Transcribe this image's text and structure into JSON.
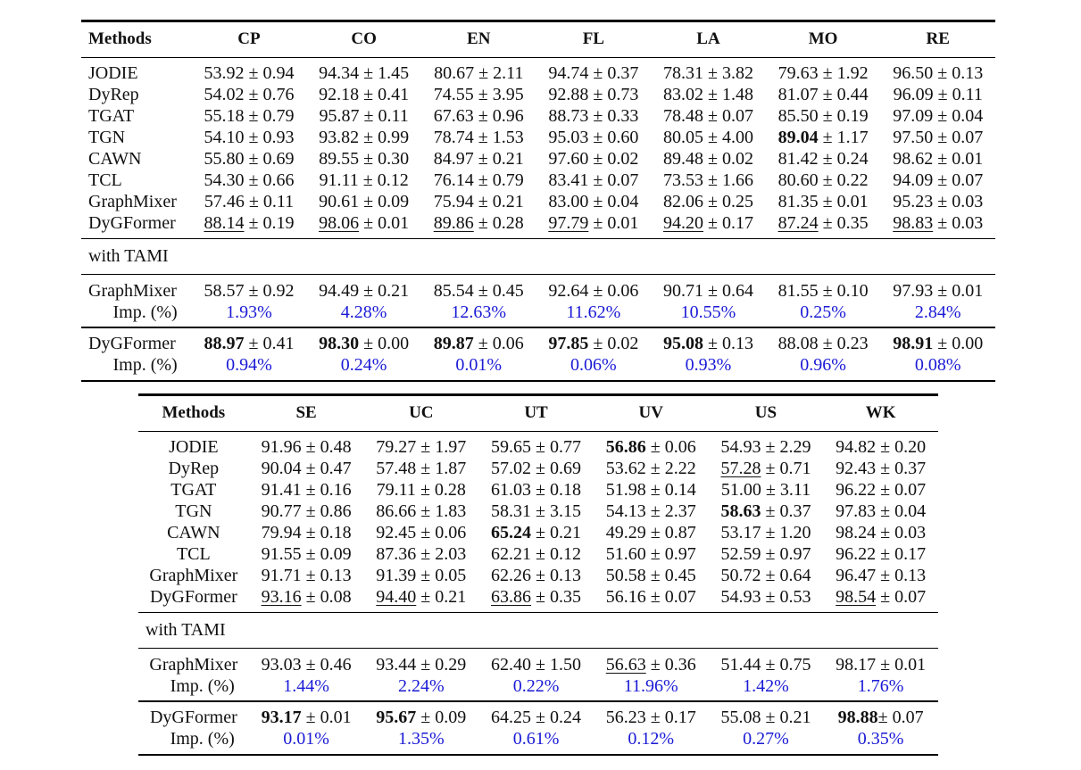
{
  "table1": {
    "header": [
      "Methods",
      "CP",
      "CO",
      "EN",
      "FL",
      "LA",
      "MO",
      "RE"
    ],
    "rows": [
      {
        "method": "JODIE",
        "cells": [
          {
            "v": "53.92",
            "s": "0.94"
          },
          {
            "v": "94.34",
            "s": "1.45"
          },
          {
            "v": "80.67",
            "s": "2.11"
          },
          {
            "v": "94.74",
            "s": "0.37"
          },
          {
            "v": "78.31",
            "s": "3.82"
          },
          {
            "v": "79.63",
            "s": "1.92"
          },
          {
            "v": "96.50",
            "s": "0.13"
          }
        ]
      },
      {
        "method": "DyRep",
        "cells": [
          {
            "v": "54.02",
            "s": "0.76"
          },
          {
            "v": "92.18",
            "s": "0.41"
          },
          {
            "v": "74.55",
            "s": "3.95"
          },
          {
            "v": "92.88",
            "s": "0.73"
          },
          {
            "v": "83.02",
            "s": "1.48"
          },
          {
            "v": "81.07",
            "s": "0.44"
          },
          {
            "v": "96.09",
            "s": "0.11"
          }
        ]
      },
      {
        "method": "TGAT",
        "cells": [
          {
            "v": "55.18",
            "s": "0.79"
          },
          {
            "v": "95.87",
            "s": "0.11"
          },
          {
            "v": "67.63",
            "s": "0.96"
          },
          {
            "v": "88.73",
            "s": "0.33"
          },
          {
            "v": "78.48",
            "s": "0.07"
          },
          {
            "v": "85.50",
            "s": "0.19"
          },
          {
            "v": "97.09",
            "s": "0.04"
          }
        ]
      },
      {
        "method": "TGN",
        "cells": [
          {
            "v": "54.10",
            "s": "0.93"
          },
          {
            "v": "93.82",
            "s": "0.99"
          },
          {
            "v": "78.74",
            "s": "1.53"
          },
          {
            "v": "95.03",
            "s": "0.60"
          },
          {
            "v": "80.05",
            "s": "4.00"
          },
          {
            "v": "89.04",
            "s": "1.17",
            "b": true
          },
          {
            "v": "97.50",
            "s": "0.07"
          }
        ]
      },
      {
        "method": "CAWN",
        "cells": [
          {
            "v": "55.80",
            "s": "0.69"
          },
          {
            "v": "89.55",
            "s": "0.30"
          },
          {
            "v": "84.97",
            "s": "0.21"
          },
          {
            "v": "97.60",
            "s": "0.02"
          },
          {
            "v": "89.48",
            "s": "0.02"
          },
          {
            "v": "81.42",
            "s": "0.24"
          },
          {
            "v": "98.62",
            "s": "0.01"
          }
        ]
      },
      {
        "method": "TCL",
        "cells": [
          {
            "v": "54.30",
            "s": "0.66"
          },
          {
            "v": "91.11",
            "s": "0.12"
          },
          {
            "v": "76.14",
            "s": "0.79"
          },
          {
            "v": "83.41",
            "s": "0.07"
          },
          {
            "v": "73.53",
            "s": "1.66"
          },
          {
            "v": "80.60",
            "s": "0.22"
          },
          {
            "v": "94.09",
            "s": "0.07"
          }
        ]
      },
      {
        "method": "GraphMixer",
        "cells": [
          {
            "v": "57.46",
            "s": "0.11"
          },
          {
            "v": "90.61",
            "s": "0.09"
          },
          {
            "v": "75.94",
            "s": "0.21"
          },
          {
            "v": "83.00",
            "s": "0.04"
          },
          {
            "v": "82.06",
            "s": "0.25"
          },
          {
            "v": "81.35",
            "s": "0.01"
          },
          {
            "v": "95.23",
            "s": "0.03"
          }
        ]
      },
      {
        "method": "DyGFormer",
        "cells": [
          {
            "v": "88.14",
            "s": "0.19",
            "u": true
          },
          {
            "v": "98.06",
            "s": "0.01",
            "u": true
          },
          {
            "v": "89.86",
            "s": "0.28",
            "u": true
          },
          {
            "v": "97.79",
            "s": "0.01",
            "u": true
          },
          {
            "v": "94.20",
            "s": "0.17",
            "u": true
          },
          {
            "v": "87.24",
            "s": "0.35",
            "u": true
          },
          {
            "v": "98.83",
            "s": "0.03",
            "u": true
          }
        ]
      }
    ],
    "section_label": "with TAMI",
    "tami": [
      {
        "method": "GraphMixer",
        "cells": [
          {
            "v": "58.57",
            "s": "0.92"
          },
          {
            "v": "94.49",
            "s": "0.21"
          },
          {
            "v": "85.54",
            "s": "0.45"
          },
          {
            "v": "92.64",
            "s": "0.06"
          },
          {
            "v": "90.71",
            "s": "0.64"
          },
          {
            "v": "81.55",
            "s": "0.10"
          },
          {
            "v": "97.93",
            "s": "0.01"
          }
        ],
        "imp_label": "Imp. (%)",
        "imp": [
          "1.93%",
          "4.28%",
          "12.63%",
          "11.62%",
          "10.55%",
          "0.25%",
          "2.84%"
        ]
      },
      {
        "method": "DyGFormer",
        "cells": [
          {
            "v": "88.97",
            "s": "0.41",
            "b": true
          },
          {
            "v": "98.30",
            "s": "0.00",
            "b": true
          },
          {
            "v": "89.87",
            "s": "0.06",
            "b": true
          },
          {
            "v": "97.85",
            "s": "0.02",
            "b": true
          },
          {
            "v": "95.08",
            "s": "0.13",
            "b": true
          },
          {
            "v": "88.08",
            "s": "0.23"
          },
          {
            "v": "98.91",
            "s": "0.00",
            "b": true
          }
        ],
        "imp_label": "Imp. (%)",
        "imp": [
          "0.94%",
          "0.24%",
          "0.01%",
          "0.06%",
          "0.93%",
          "0.96%",
          "0.08%"
        ]
      }
    ]
  },
  "table2": {
    "header": [
      "Methods",
      "SE",
      "UC",
      "UT",
      "UV",
      "US",
      "WK"
    ],
    "rows": [
      {
        "method": "JODIE",
        "cells": [
          {
            "v": "91.96",
            "s": "0.48"
          },
          {
            "v": "79.27",
            "s": "1.97"
          },
          {
            "v": "59.65",
            "s": "0.77"
          },
          {
            "v": "56.86",
            "s": "0.06",
            "b": true
          },
          {
            "v": "54.93",
            "s": "2.29"
          },
          {
            "v": "94.82",
            "s": "0.20"
          }
        ]
      },
      {
        "method": "DyRep",
        "cells": [
          {
            "v": "90.04",
            "s": "0.47"
          },
          {
            "v": "57.48",
            "s": "1.87"
          },
          {
            "v": "57.02",
            "s": "0.69"
          },
          {
            "v": "53.62",
            "s": "2.22"
          },
          {
            "v": "57.28",
            "s": "0.71",
            "u": true
          },
          {
            "v": "92.43",
            "s": "0.37"
          }
        ]
      },
      {
        "method": "TGAT",
        "cells": [
          {
            "v": "91.41",
            "s": "0.16"
          },
          {
            "v": "79.11",
            "s": "0.28"
          },
          {
            "v": "61.03",
            "s": "0.18"
          },
          {
            "v": "51.98",
            "s": "0.14"
          },
          {
            "v": "51.00",
            "s": "3.11"
          },
          {
            "v": "96.22",
            "s": "0.07"
          }
        ]
      },
      {
        "method": "TGN",
        "cells": [
          {
            "v": "90.77",
            "s": "0.86"
          },
          {
            "v": "86.66",
            "s": "1.83"
          },
          {
            "v": "58.31",
            "s": "3.15"
          },
          {
            "v": "54.13",
            "s": "2.37"
          },
          {
            "v": "58.63",
            "s": "0.37",
            "b": true
          },
          {
            "v": "97.83",
            "s": "0.04"
          }
        ]
      },
      {
        "method": "CAWN",
        "cells": [
          {
            "v": "79.94",
            "s": "0.18"
          },
          {
            "v": "92.45",
            "s": "0.06"
          },
          {
            "v": "65.24",
            "s": "0.21",
            "b": true
          },
          {
            "v": "49.29",
            "s": "0.87"
          },
          {
            "v": "53.17",
            "s": "1.20"
          },
          {
            "v": "98.24",
            "s": "0.03"
          }
        ]
      },
      {
        "method": "TCL",
        "cells": [
          {
            "v": "91.55",
            "s": "0.09"
          },
          {
            "v": "87.36",
            "s": "2.03"
          },
          {
            "v": "62.21",
            "s": "0.12"
          },
          {
            "v": "51.60",
            "s": "0.97"
          },
          {
            "v": "52.59",
            "s": "0.97"
          },
          {
            "v": "96.22",
            "s": "0.17"
          }
        ]
      },
      {
        "method": "GraphMixer",
        "cells": [
          {
            "v": "91.71",
            "s": "0.13"
          },
          {
            "v": "91.39",
            "s": "0.05"
          },
          {
            "v": "62.26",
            "s": "0.13"
          },
          {
            "v": "50.58",
            "s": "0.45"
          },
          {
            "v": "50.72",
            "s": "0.64"
          },
          {
            "v": "96.47",
            "s": "0.13"
          }
        ]
      },
      {
        "method": "DyGFormer",
        "cells": [
          {
            "v": "93.16",
            "s": "0.08",
            "u": true
          },
          {
            "v": "94.40",
            "s": "0.21",
            "u": true
          },
          {
            "v": "63.86",
            "s": "0.35",
            "u": true
          },
          {
            "v": "56.16",
            "s": "0.07"
          },
          {
            "v": "54.93",
            "s": "0.53"
          },
          {
            "v": "98.54",
            "s": "0.07",
            "u": true
          }
        ]
      }
    ],
    "section_label": "with TAMI",
    "tami": [
      {
        "method": "GraphMixer",
        "cells": [
          {
            "v": "93.03",
            "s": "0.46"
          },
          {
            "v": "93.44",
            "s": "0.29"
          },
          {
            "v": "62.40",
            "s": "1.50"
          },
          {
            "v": "56.63",
            "s": "0.36",
            "u": true
          },
          {
            "v": "51.44",
            "s": "0.75"
          },
          {
            "v": "98.17",
            "s": "0.01"
          }
        ],
        "imp_label": "Imp. (%)",
        "imp": [
          "1.44%",
          "2.24%",
          "0.22%",
          "11.96%",
          "1.42%",
          "1.76%"
        ]
      },
      {
        "method": "DyGFormer",
        "cells": [
          {
            "v": "93.17",
            "s": "0.01",
            "b": true
          },
          {
            "v": "95.67",
            "s": "0.09",
            "b": true
          },
          {
            "v": "64.25",
            "s": "0.24"
          },
          {
            "v": "56.23",
            "s": "0.17"
          },
          {
            "v": "55.08",
            "s": "0.21"
          },
          {
            "v": "98.88",
            "s": "0.07",
            "b": true,
            "tight": true
          }
        ],
        "imp_label": "Imp. (%)",
        "imp": [
          "0.01%",
          "1.35%",
          "0.61%",
          "0.12%",
          "0.27%",
          "0.35%"
        ]
      }
    ]
  }
}
